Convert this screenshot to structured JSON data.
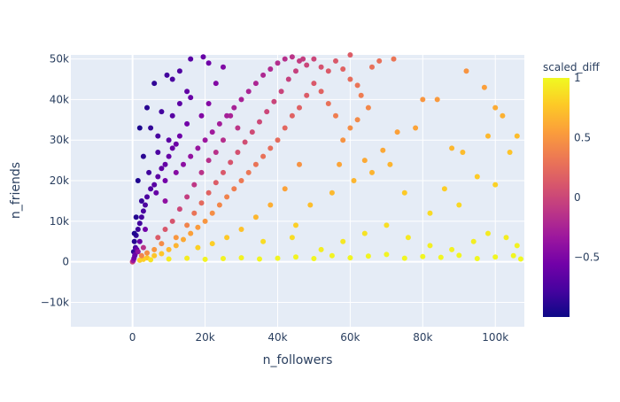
{
  "chart_data": {
    "type": "scatter",
    "title": "",
    "xlabel": "n_followers",
    "ylabel": "n_friends",
    "xlim": [
      -17000,
      108000
    ],
    "ylim": [
      -16000,
      51000
    ],
    "x_ticks": [
      {
        "v": 0,
        "label": "0"
      },
      {
        "v": 20000,
        "label": "20k"
      },
      {
        "v": 40000,
        "label": "40k"
      },
      {
        "v": 60000,
        "label": "60k"
      },
      {
        "v": 80000,
        "label": "80k"
      },
      {
        "v": 100000,
        "label": "100k"
      }
    ],
    "y_ticks": [
      {
        "v": -10000,
        "label": "−10k"
      },
      {
        "v": 0,
        "label": "0"
      },
      {
        "v": 10000,
        "label": "10k"
      },
      {
        "v": 20000,
        "label": "20k"
      },
      {
        "v": 30000,
        "label": "30k"
      },
      {
        "v": 40000,
        "label": "40k"
      },
      {
        "v": 50000,
        "label": "50k"
      }
    ],
    "grid": true,
    "colorbar": {
      "title": "scaled_diff",
      "range": [
        -1,
        1
      ],
      "ticks": [
        {
          "v": 1,
          "label": "1"
        },
        {
          "v": 0.5,
          "label": "0.5"
        },
        {
          "v": 0,
          "label": "0"
        },
        {
          "v": -0.5,
          "label": "−0.5"
        }
      ],
      "colorscale": [
        "#0d0887",
        "#46039f",
        "#7201a8",
        "#9c179e",
        "#bd3786",
        "#d8576b",
        "#ed7953",
        "#fb9f3a",
        "#fdca26",
        "#f0f921"
      ]
    },
    "points": [
      [
        0,
        0
      ],
      [
        200,
        300
      ],
      [
        400,
        900
      ],
      [
        600,
        1500
      ],
      [
        300,
        2500
      ],
      [
        800,
        3500
      ],
      [
        500,
        5000
      ],
      [
        1000,
        6500
      ],
      [
        1500,
        8000
      ],
      [
        2000,
        9500
      ],
      [
        2500,
        11000
      ],
      [
        3000,
        12500
      ],
      [
        3500,
        14000
      ],
      [
        4000,
        16000
      ],
      [
        5000,
        18000
      ],
      [
        6000,
        19000
      ],
      [
        7000,
        21000
      ],
      [
        8000,
        23000
      ],
      [
        9000,
        24000
      ],
      [
        10000,
        26000
      ],
      [
        11000,
        28000
      ],
      [
        12000,
        29000
      ],
      [
        13000,
        31000
      ],
      [
        15000,
        34000
      ],
      [
        15000,
        42000
      ],
      [
        16000,
        40500
      ],
      [
        19000,
        36000
      ],
      [
        21000,
        39000
      ],
      [
        23000,
        44000
      ],
      [
        25000,
        48000
      ],
      [
        5000,
        33000
      ],
      [
        7000,
        31000
      ],
      [
        3000,
        26000
      ],
      [
        1500,
        20000
      ],
      [
        9000,
        20000
      ],
      [
        12000,
        22000
      ],
      [
        14000,
        24000
      ],
      [
        16000,
        26000
      ],
      [
        18000,
        28000
      ],
      [
        20000,
        30000
      ],
      [
        22000,
        32000
      ],
      [
        24000,
        34000
      ],
      [
        26000,
        36000
      ],
      [
        28000,
        38000
      ],
      [
        30000,
        40000
      ],
      [
        32000,
        42000
      ],
      [
        34000,
        44000
      ],
      [
        36000,
        46000
      ],
      [
        38000,
        47500
      ],
      [
        40000,
        49000
      ],
      [
        42000,
        50000
      ],
      [
        44000,
        50500
      ],
      [
        46000,
        49500
      ],
      [
        48000,
        48500
      ],
      [
        50000,
        50000
      ],
      [
        52000,
        48000
      ],
      [
        54000,
        47000
      ],
      [
        56000,
        49500
      ],
      [
        58000,
        47500
      ],
      [
        60000,
        45000
      ],
      [
        62000,
        43500
      ],
      [
        63000,
        41000
      ],
      [
        65000,
        38000
      ],
      [
        62000,
        35000
      ],
      [
        60000,
        33000
      ],
      [
        58000,
        30000
      ],
      [
        56000,
        36000
      ],
      [
        54000,
        39000
      ],
      [
        52000,
        42000
      ],
      [
        50000,
        44000
      ],
      [
        48000,
        41000
      ],
      [
        46000,
        38000
      ],
      [
        44000,
        36000
      ],
      [
        42000,
        33000
      ],
      [
        40000,
        30000
      ],
      [
        38000,
        28000
      ],
      [
        36000,
        26000
      ],
      [
        34000,
        24000
      ],
      [
        32000,
        22000
      ],
      [
        30000,
        20000
      ],
      [
        28000,
        18000
      ],
      [
        26000,
        16000
      ],
      [
        24000,
        14000
      ],
      [
        22000,
        12000
      ],
      [
        20000,
        10000
      ],
      [
        18000,
        8500
      ],
      [
        16000,
        7000
      ],
      [
        14000,
        5500
      ],
      [
        12000,
        4000
      ],
      [
        10000,
        3000
      ],
      [
        8000,
        2000
      ],
      [
        6000,
        1500
      ],
      [
        4000,
        1000
      ],
      [
        3000,
        600
      ],
      [
        2000,
        400
      ],
      [
        5000,
        500
      ],
      [
        10000,
        700
      ],
      [
        15000,
        900
      ],
      [
        20000,
        600
      ],
      [
        25000,
        800
      ],
      [
        30000,
        1000
      ],
      [
        35000,
        700
      ],
      [
        40000,
        900
      ],
      [
        45000,
        1200
      ],
      [
        50000,
        800
      ],
      [
        55000,
        1500
      ],
      [
        60000,
        1000
      ],
      [
        65000,
        1400
      ],
      [
        70000,
        1800
      ],
      [
        75000,
        900
      ],
      [
        80000,
        1300
      ],
      [
        85000,
        1100
      ],
      [
        90000,
        1600
      ],
      [
        95000,
        800
      ],
      [
        100000,
        1200
      ],
      [
        105000,
        1500
      ],
      [
        107000,
        700
      ],
      [
        52000,
        3000
      ],
      [
        58000,
        5000
      ],
      [
        64000,
        7000
      ],
      [
        70000,
        9000
      ],
      [
        76000,
        6000
      ],
      [
        82000,
        4000
      ],
      [
        88000,
        3000
      ],
      [
        94000,
        5000
      ],
      [
        98000,
        7000
      ],
      [
        103000,
        6000
      ],
      [
        106000,
        4000
      ],
      [
        45000,
        9000
      ],
      [
        49000,
        14000
      ],
      [
        55000,
        17000
      ],
      [
        61000,
        20000
      ],
      [
        66000,
        22000
      ],
      [
        71000,
        24000
      ],
      [
        75000,
        17000
      ],
      [
        82000,
        12000
      ],
      [
        86000,
        18000
      ],
      [
        90000,
        14000
      ],
      [
        95000,
        21000
      ],
      [
        100000,
        19000
      ],
      [
        104000,
        27000
      ],
      [
        106000,
        31000
      ],
      [
        102000,
        36000
      ],
      [
        100000,
        38000
      ],
      [
        98000,
        31000
      ],
      [
        91000,
        27000
      ],
      [
        88000,
        28000
      ],
      [
        84000,
        40000
      ],
      [
        80000,
        40000
      ],
      [
        78000,
        33000
      ],
      [
        72000,
        50000
      ],
      [
        68000,
        49500
      ],
      [
        66000,
        48000
      ],
      [
        60000,
        51000
      ],
      [
        92000,
        47000
      ],
      [
        97000,
        43000
      ],
      [
        73000,
        32000
      ],
      [
        69000,
        27500
      ],
      [
        64000,
        25000
      ],
      [
        57000,
        24000
      ],
      [
        46000,
        24000
      ],
      [
        42000,
        18000
      ],
      [
        38000,
        14000
      ],
      [
        34000,
        11000
      ],
      [
        30000,
        8000
      ],
      [
        26000,
        6000
      ],
      [
        22000,
        4500
      ],
      [
        18000,
        3500
      ],
      [
        36000,
        5000
      ],
      [
        44000,
        6000
      ],
      [
        6000,
        44000
      ],
      [
        9500,
        46000
      ],
      [
        11000,
        45000
      ],
      [
        13000,
        47000
      ],
      [
        16000,
        50000
      ],
      [
        19500,
        50500
      ],
      [
        21000,
        49000
      ],
      [
        4000,
        38000
      ],
      [
        2000,
        33000
      ],
      [
        8000,
        37000
      ],
      [
        11000,
        36000
      ],
      [
        13000,
        39000
      ],
      [
        7000,
        27000
      ],
      [
        10000,
        30000
      ],
      [
        4500,
        22000
      ],
      [
        6500,
        17000
      ],
      [
        9000,
        15000
      ],
      [
        2500,
        15000
      ],
      [
        1000,
        11000
      ],
      [
        500,
        7000
      ],
      [
        2000,
        5000
      ],
      [
        3500,
        8000
      ],
      [
        1200,
        3000
      ],
      [
        2500,
        1500
      ],
      [
        700,
        1800
      ],
      [
        1500,
        2500
      ],
      [
        3000,
        3500
      ],
      [
        4000,
        2200
      ],
      [
        6000,
        3000
      ],
      [
        8000,
        4500
      ],
      [
        12000,
        6000
      ],
      [
        15000,
        9000
      ],
      [
        17000,
        12000
      ],
      [
        19000,
        14500
      ],
      [
        21000,
        17000
      ],
      [
        23000,
        19500
      ],
      [
        25000,
        22000
      ],
      [
        27000,
        24500
      ],
      [
        29000,
        27000
      ],
      [
        31000,
        29500
      ],
      [
        33000,
        32000
      ],
      [
        35000,
        34500
      ],
      [
        37000,
        37000
      ],
      [
        39000,
        39500
      ],
      [
        41000,
        42000
      ],
      [
        43000,
        45000
      ],
      [
        45000,
        47000
      ],
      [
        47000,
        50000
      ],
      [
        29000,
        33000
      ],
      [
        27000,
        36000
      ],
      [
        25000,
        30000
      ],
      [
        23000,
        27000
      ],
      [
        21000,
        25000
      ],
      [
        19000,
        22000
      ],
      [
        17000,
        19000
      ],
      [
        15000,
        16000
      ],
      [
        13000,
        13000
      ],
      [
        11000,
        10000
      ],
      [
        9000,
        8000
      ],
      [
        7000,
        6000
      ]
    ]
  }
}
